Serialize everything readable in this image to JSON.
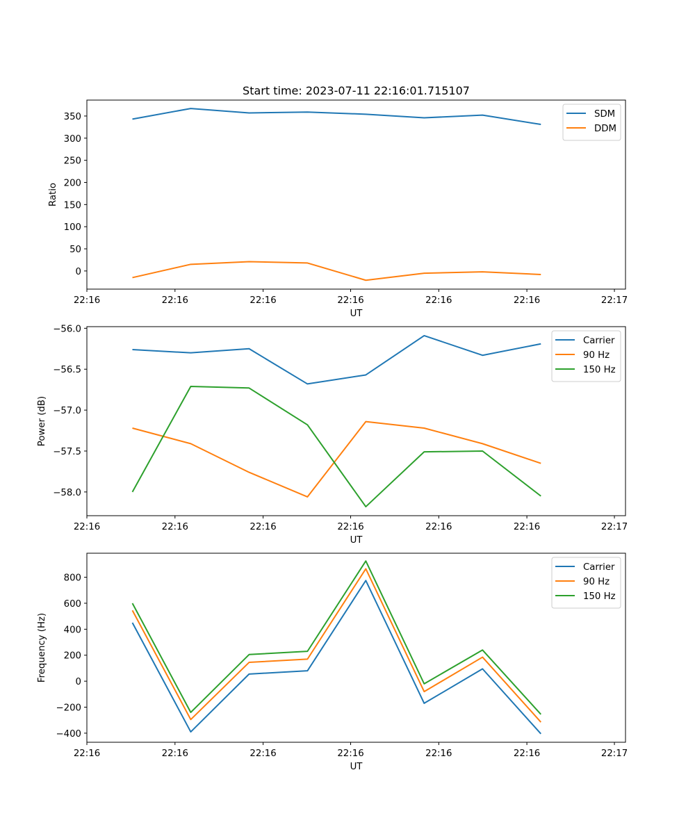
{
  "chart_data": [
    {
      "type": "line",
      "title": "Start time: 2023-07-11 22:16:01.715107",
      "xlabel": "UT",
      "ylabel": "Ratio",
      "x": [
        0,
        1,
        2,
        3,
        4,
        5,
        6,
        7
      ],
      "xlim": [
        -0.78,
        8.45
      ],
      "x_ticks": [
        {
          "x": -0.78,
          "label": "22:16"
        },
        {
          "x": 0.73,
          "label": "22:16"
        },
        {
          "x": 2.24,
          "label": "22:16"
        },
        {
          "x": 3.74,
          "label": "22:16"
        },
        {
          "x": 5.25,
          "label": "22:16"
        },
        {
          "x": 6.76,
          "label": "22:16"
        },
        {
          "x": 8.26,
          "label": "22:17"
        }
      ],
      "ylim": [
        -41,
        386
      ],
      "y_ticks": [
        0,
        50,
        100,
        150,
        200,
        250,
        300,
        350
      ],
      "y_tick_labels": [
        "0",
        "50",
        "100",
        "150",
        "200",
        "250",
        "300",
        "350"
      ],
      "legend_position": "top-right",
      "series": [
        {
          "name": "SDM",
          "color": "#1f77b4",
          "values": [
            343,
            367,
            357,
            359,
            354,
            346,
            352,
            331
          ]
        },
        {
          "name": "DDM",
          "color": "#ff7f0e",
          "values": [
            -15,
            15,
            21,
            18,
            -21,
            -5,
            -2,
            -8
          ]
        }
      ]
    },
    {
      "type": "line",
      "xlabel": "UT",
      "ylabel": "Power (dB)",
      "x": [
        0,
        1,
        2,
        3,
        4,
        5,
        6,
        7
      ],
      "xlim": [
        -0.78,
        8.45
      ],
      "x_ticks": [
        {
          "x": -0.78,
          "label": "22:16"
        },
        {
          "x": 0.73,
          "label": "22:16"
        },
        {
          "x": 2.24,
          "label": "22:16"
        },
        {
          "x": 3.74,
          "label": "22:16"
        },
        {
          "x": 5.25,
          "label": "22:16"
        },
        {
          "x": 6.76,
          "label": "22:16"
        },
        {
          "x": 8.26,
          "label": "22:17"
        }
      ],
      "ylim": [
        -58.29,
        -55.98
      ],
      "y_ticks": [
        -58.0,
        -57.5,
        -57.0,
        -56.5,
        -56.0
      ],
      "y_tick_labels": [
        "−58.0",
        "−57.5",
        "−57.0",
        "−56.5",
        "−56.0"
      ],
      "legend_position": "top-right",
      "series": [
        {
          "name": "Carrier",
          "color": "#1f77b4",
          "values": [
            -56.26,
            -56.3,
            -56.25,
            -56.68,
            -56.57,
            -56.09,
            -56.33,
            -56.19
          ]
        },
        {
          "name": "90 Hz",
          "color": "#ff7f0e",
          "values": [
            -57.22,
            -57.41,
            -57.76,
            -58.06,
            -57.14,
            -57.22,
            -57.41,
            -57.65
          ]
        },
        {
          "name": "150 Hz",
          "color": "#2ca02c",
          "values": [
            -58.0,
            -56.71,
            -56.73,
            -57.18,
            -58.18,
            -57.51,
            -57.5,
            -58.05
          ]
        }
      ]
    },
    {
      "type": "line",
      "xlabel": "UT",
      "ylabel": "Frequency (Hz)",
      "x": [
        0,
        1,
        2,
        3,
        4,
        5,
        6,
        7
      ],
      "xlim": [
        -0.78,
        8.45
      ],
      "x_ticks": [
        {
          "x": -0.78,
          "label": "22:16"
        },
        {
          "x": 0.73,
          "label": "22:16"
        },
        {
          "x": 2.24,
          "label": "22:16"
        },
        {
          "x": 3.74,
          "label": "22:16"
        },
        {
          "x": 5.25,
          "label": "22:16"
        },
        {
          "x": 6.76,
          "label": "22:16"
        },
        {
          "x": 8.26,
          "label": "22:17"
        }
      ],
      "ylim": [
        -470,
        985
      ],
      "y_ticks": [
        -400,
        -200,
        0,
        200,
        400,
        600,
        800
      ],
      "y_tick_labels": [
        "−400",
        "−200",
        "0",
        "200",
        "400",
        "600",
        "800"
      ],
      "legend_position": "top-right",
      "series": [
        {
          "name": "Carrier",
          "color": "#1f77b4",
          "values": [
            450,
            -390,
            55,
            80,
            775,
            -170,
            95,
            -405
          ]
        },
        {
          "name": "90 Hz",
          "color": "#ff7f0e",
          "values": [
            545,
            -295,
            145,
            170,
            865,
            -80,
            185,
            -315
          ]
        },
        {
          "name": "150 Hz",
          "color": "#2ca02c",
          "values": [
            600,
            -240,
            205,
            230,
            925,
            -20,
            240,
            -255
          ]
        }
      ]
    }
  ]
}
